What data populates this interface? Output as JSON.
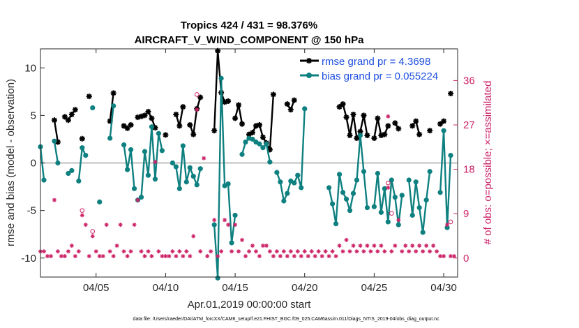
{
  "chart_data": {
    "type": "line",
    "title": "Tropics 424 / 431 = 98.376%",
    "subtitle": "AIRCRAFT_V_WIND_COMPONENT @ 150 hPa",
    "xlabel": "Apr.01,2019 00:00:00 start",
    "ylabel": "rmse and bias (model - observation)",
    "ylabel_right": "# of obs: o=possible; ×=assimilated",
    "footer": "data file: /Users/raeder/DAI/ATM_forcXX/CAM6_setup/f.e21.FHIST_BGC.f09_025.CAM6assim.011/Diags_NTrS_2019-04/obs_diag_output.nc",
    "xlim": [
      1.0,
      31.0
    ],
    "ylim": [
      -12,
      12
    ],
    "ylim_right": [
      -12,
      12
    ],
    "x_ticks": [
      5,
      10,
      15,
      20,
      25,
      30
    ],
    "x_tick_labels": [
      "04/05",
      "04/10",
      "04/15",
      "04/20",
      "04/25",
      "04/30"
    ],
    "y_ticks": [
      -10,
      -5,
      0,
      5,
      10
    ],
    "y_tick_labels": [
      "-10",
      "-5",
      "0",
      "5",
      "10"
    ],
    "y_ticks_right": [
      -10,
      -5.333,
      -0.667,
      4,
      8.667
    ],
    "y_tick_labels_right": [
      "0",
      "9",
      "18",
      "27",
      "36"
    ],
    "legend": [
      {
        "name": "rmse grand pr = 4.3698",
        "color": "#000000"
      },
      {
        "name": "bias grand pr = 0.055224",
        "color": "#0f8080"
      }
    ],
    "zero_line": 0,
    "series": [
      {
        "name": "rmse",
        "color": "#000000",
        "points": [
          [
            2.0,
            4.5
          ],
          [
            2.25,
            2.2
          ],
          null,
          [
            2.75,
            4.85
          ],
          [
            3.0,
            4.5
          ],
          [
            3.25,
            5.1
          ],
          [
            3.5,
            5.6
          ],
          null,
          [
            4.0,
            2.55
          ],
          null,
          [
            4.5,
            7.0
          ],
          null,
          [
            6.0,
            4.4
          ],
          [
            6.25,
            7.35
          ],
          null,
          [
            7.0,
            3.9
          ],
          [
            7.25,
            3.65
          ],
          [
            7.5,
            4.0
          ],
          null,
          [
            8.0,
            4.8
          ],
          [
            8.25,
            4.9
          ],
          [
            8.5,
            5.0
          ],
          [
            8.75,
            5.4
          ],
          [
            9.0,
            4.7
          ],
          [
            9.25,
            3.7
          ],
          null,
          [
            10.0,
            2.95
          ],
          null,
          [
            10.75,
            5.1
          ],
          [
            11.0,
            3.9
          ],
          [
            11.25,
            5.9
          ],
          null,
          [
            11.75,
            4.0
          ],
          [
            12.0,
            3.0
          ],
          [
            12.25,
            5.7
          ],
          [
            12.5,
            6.9
          ],
          null,
          [
            13.5,
            3.4
          ],
          [
            13.75,
            11.8
          ],
          [
            14.0,
            7.4
          ],
          [
            14.25,
            6.4
          ],
          [
            14.5,
            6.5
          ],
          null,
          [
            15.0,
            4.7
          ],
          [
            15.25,
            6.1
          ],
          [
            15.5,
            4.1
          ],
          null,
          [
            16.0,
            3.0
          ],
          [
            16.25,
            3.2
          ],
          [
            16.5,
            3.9
          ],
          [
            16.75,
            4.0
          ],
          [
            17.0,
            2.7
          ],
          [
            17.25,
            2.1
          ],
          [
            17.5,
            1.4
          ],
          [
            17.75,
            7.2
          ],
          null,
          [
            18.75,
            6.2
          ],
          [
            19.0,
            5.6
          ],
          [
            19.25,
            6.6
          ],
          null,
          [
            22.5,
            5.9
          ],
          [
            22.75,
            6.2
          ],
          [
            23.0,
            4.8
          ],
          [
            23.25,
            2.9
          ],
          [
            23.5,
            5.1
          ],
          [
            23.75,
            2.6
          ],
          [
            24.0,
            3.3
          ],
          [
            24.25,
            5.0
          ],
          [
            24.5,
            2.9
          ],
          null,
          [
            25.0,
            2.6
          ],
          [
            25.25,
            4.7
          ],
          [
            25.5,
            2.9
          ],
          [
            25.75,
            3.0
          ],
          [
            26.0,
            3.9
          ],
          null,
          [
            26.5,
            4.2
          ],
          [
            26.75,
            3.6
          ],
          null,
          [
            27.75,
            3.9
          ],
          [
            28.0,
            4.4
          ],
          [
            28.25,
            3.0
          ],
          null,
          [
            29.0,
            3.4
          ],
          null,
          [
            29.75,
            4.1
          ],
          [
            30.0,
            4.4
          ],
          null,
          [
            30.5,
            7.3
          ]
        ]
      },
      {
        "name": "bias",
        "color": "#0f8080",
        "points": [
          [
            1.0,
            1.7
          ],
          [
            1.25,
            -1.8
          ],
          null,
          [
            2.0,
            2.3
          ],
          [
            2.25,
            0.0
          ],
          null,
          [
            3.0,
            -1.1
          ],
          [
            3.25,
            -0.8
          ],
          null,
          [
            3.75,
            -1.9
          ],
          [
            4.0,
            1.6
          ],
          [
            4.25,
            0.8
          ],
          null,
          [
            4.75,
            5.8
          ],
          null,
          [
            5.25,
            -4.1
          ],
          null,
          [
            6.0,
            2.6
          ],
          [
            6.25,
            6.0
          ],
          null,
          [
            7.0,
            1.9
          ],
          [
            7.25,
            -0.7
          ],
          [
            7.5,
            1.4
          ],
          [
            7.75,
            -2.7
          ],
          null,
          [
            8.0,
            -3.9
          ],
          [
            8.25,
            -3.6
          ],
          [
            8.5,
            1.2
          ],
          [
            8.75,
            -1.3
          ],
          [
            9.0,
            3.8
          ],
          [
            9.25,
            -1.7
          ],
          [
            9.5,
            3.1
          ],
          [
            9.75,
            1.3
          ],
          null,
          [
            10.5,
            0.0
          ],
          [
            10.75,
            -0.4
          ],
          [
            11.0,
            -2.7
          ],
          [
            11.25,
            1.8
          ],
          [
            11.5,
            -2.0
          ],
          [
            11.75,
            -0.5
          ],
          [
            12.0,
            -1.4
          ],
          [
            12.25,
            -2.3
          ],
          [
            12.5,
            -0.6
          ],
          null,
          [
            13.5,
            -6.5
          ],
          [
            13.75,
            -12.1
          ],
          [
            14.0,
            8.9
          ],
          [
            14.25,
            -2.4
          ],
          [
            14.5,
            -2.2
          ],
          [
            14.75,
            -8.4
          ],
          [
            15.0,
            -5.5
          ],
          null,
          [
            15.5,
            0.9
          ],
          [
            15.75,
            2.2
          ],
          [
            16.0,
            2.6
          ],
          [
            16.25,
            2.5
          ],
          [
            16.5,
            2.2
          ],
          [
            16.75,
            2.0
          ],
          [
            17.0,
            1.6
          ],
          [
            17.25,
            2.0
          ],
          [
            17.5,
            0.1
          ],
          null,
          [
            18.0,
            -1.0
          ],
          [
            18.25,
            -2.0
          ],
          [
            18.5,
            -4.0
          ],
          [
            18.75,
            -3.2
          ],
          [
            19.0,
            -1.9
          ],
          [
            19.25,
            -2.1
          ],
          [
            19.5,
            -1.3
          ],
          [
            19.75,
            -2.6
          ],
          [
            20.0,
            5.7
          ],
          null,
          [
            21.75,
            -2.6
          ],
          [
            22.0,
            -4.3
          ],
          [
            22.25,
            -6.4
          ],
          [
            22.5,
            -1.2
          ],
          [
            22.75,
            -3.1
          ],
          [
            23.0,
            -3.8
          ],
          [
            23.25,
            -5.0
          ],
          [
            23.5,
            -3.2
          ],
          [
            23.75,
            -1.8
          ],
          [
            24.0,
            2.9
          ],
          [
            24.25,
            -0.9
          ],
          [
            24.5,
            -4.7
          ],
          null,
          [
            25.0,
            -4.6
          ],
          [
            25.25,
            -1.1
          ],
          [
            25.5,
            -5.2
          ],
          [
            25.75,
            -2.7
          ],
          [
            26.0,
            -6.2
          ],
          [
            26.25,
            -1.8
          ],
          [
            26.5,
            -3.6
          ],
          [
            26.75,
            -6.5
          ],
          [
            27.0,
            -3.4
          ],
          null,
          [
            27.5,
            -1.8
          ],
          [
            27.75,
            -5.5
          ],
          [
            28.0,
            -2.0
          ],
          [
            28.25,
            -4.7
          ],
          [
            28.5,
            -7.3
          ],
          [
            28.75,
            -3.9
          ],
          [
            29.0,
            -0.9
          ],
          null,
          [
            29.75,
            -3.1
          ],
          [
            30.0,
            3.4
          ],
          [
            30.25,
            -6.8
          ],
          [
            30.5,
            0.8
          ]
        ]
      },
      {
        "name": "nobs_possible",
        "color": "#cc2266",
        "marker": "open-circle",
        "points": [
          [
            4.0,
            -5.0
          ],
          [
            4.75,
            -7.2
          ],
          [
            12.25,
            7.2
          ],
          [
            26.0,
            -2.1
          ],
          [
            26.25,
            -5.3
          ],
          [
            30.5,
            -6.2
          ]
        ]
      },
      {
        "name": "nobs_assimilated",
        "color": "#cc2266",
        "marker": "asterisk",
        "points": [
          [
            1.0,
            -9.3
          ],
          [
            1.25,
            -9.3
          ],
          [
            1.5,
            -9.8
          ],
          [
            1.75,
            -9.8
          ],
          [
            2.0,
            -3.9
          ],
          [
            2.25,
            -9.3
          ],
          [
            2.5,
            -9.8
          ],
          [
            2.75,
            -9.8
          ],
          [
            3.0,
            -9.3
          ],
          [
            3.25,
            -8.7
          ],
          [
            3.5,
            -9.8
          ],
          [
            3.75,
            -9.3
          ],
          [
            4.0,
            -5.5
          ],
          [
            4.25,
            -6.5
          ],
          [
            4.5,
            -9.8
          ],
          [
            4.75,
            -7.7
          ],
          [
            5.0,
            -9.3
          ],
          [
            5.25,
            -9.8
          ],
          [
            5.5,
            -9.8
          ],
          [
            5.75,
            -6.5
          ],
          [
            6.0,
            -9.3
          ],
          [
            6.25,
            -9.8
          ],
          [
            6.5,
            -8.7
          ],
          [
            6.75,
            -6.5
          ],
          [
            7.0,
            -9.3
          ],
          [
            7.25,
            -9.8
          ],
          [
            7.5,
            -9.3
          ],
          [
            7.75,
            -6.5
          ],
          [
            8.0,
            -3.9
          ],
          [
            8.25,
            -9.3
          ],
          [
            8.5,
            -9.8
          ],
          [
            8.75,
            -9.3
          ],
          [
            9.0,
            -9.8
          ],
          [
            9.25,
            0.1
          ],
          [
            9.5,
            -9.3
          ],
          [
            9.75,
            -9.8
          ],
          [
            10.0,
            -9.8
          ],
          [
            10.25,
            -9.8
          ],
          [
            10.5,
            -9.3
          ],
          [
            10.75,
            -9.8
          ],
          [
            11.0,
            -9.3
          ],
          [
            11.25,
            -9.8
          ],
          [
            11.5,
            -9.3
          ],
          [
            11.75,
            -9.8
          ],
          [
            12.0,
            -7.7
          ],
          [
            12.25,
            5.6
          ],
          [
            12.5,
            -9.3
          ],
          [
            12.75,
            0.5
          ],
          [
            13.0,
            -9.8
          ],
          [
            13.25,
            -9.3
          ],
          [
            13.5,
            -6.0
          ],
          [
            13.75,
            -9.8
          ],
          [
            14.0,
            -9.3
          ],
          [
            14.25,
            -6.0
          ],
          [
            14.5,
            -6.5
          ],
          [
            14.75,
            -9.3
          ],
          [
            15.0,
            -6.5
          ],
          [
            15.25,
            -9.3
          ],
          [
            15.5,
            -8.1
          ],
          [
            15.75,
            -9.8
          ],
          [
            16.0,
            -9.3
          ],
          [
            16.25,
            -8.7
          ],
          [
            16.5,
            -9.3
          ],
          [
            16.75,
            -9.8
          ],
          [
            17.0,
            -8.7
          ],
          [
            17.25,
            -8.7
          ],
          [
            17.5,
            -9.3
          ],
          [
            17.75,
            -9.8
          ],
          [
            18.0,
            -9.3
          ],
          [
            18.25,
            -9.8
          ],
          [
            18.5,
            -9.3
          ],
          [
            18.75,
            -9.8
          ],
          [
            19.0,
            -9.3
          ],
          [
            19.25,
            -9.8
          ],
          [
            19.5,
            -9.3
          ],
          [
            19.75,
            -9.8
          ],
          [
            20.0,
            -9.3
          ],
          [
            20.25,
            -9.8
          ],
          [
            20.5,
            -9.3
          ],
          [
            20.75,
            -9.8
          ],
          [
            21.0,
            -9.3
          ],
          [
            21.25,
            -9.8
          ],
          [
            21.5,
            -9.3
          ],
          [
            21.75,
            -9.8
          ],
          [
            22.0,
            -9.3
          ],
          [
            22.25,
            -9.8
          ],
          [
            22.5,
            -8.7
          ],
          [
            22.75,
            -9.3
          ],
          [
            23.0,
            -8.1
          ],
          [
            23.25,
            -9.3
          ],
          [
            23.5,
            -8.7
          ],
          [
            23.75,
            -9.3
          ],
          [
            24.0,
            -8.7
          ],
          [
            24.25,
            -9.3
          ],
          [
            24.5,
            -8.7
          ],
          [
            24.75,
            -9.3
          ],
          [
            25.0,
            -8.7
          ],
          [
            25.25,
            -9.3
          ],
          [
            25.5,
            -8.7
          ],
          [
            25.75,
            -9.3
          ],
          [
            26.0,
            -2.6
          ],
          [
            26.25,
            -9.3
          ],
          [
            26.5,
            -8.7
          ],
          [
            26.75,
            -6.0
          ],
          [
            27.0,
            -9.3
          ],
          [
            27.25,
            -8.7
          ],
          [
            27.5,
            -9.3
          ],
          [
            27.75,
            -8.7
          ],
          [
            28.0,
            -9.3
          ],
          [
            28.25,
            -8.7
          ],
          [
            28.5,
            -9.3
          ],
          [
            28.75,
            -8.7
          ],
          [
            29.0,
            -9.3
          ],
          [
            29.25,
            -8.7
          ],
          [
            29.5,
            -9.3
          ],
          [
            29.75,
            -9.8
          ],
          [
            30.0,
            -9.8
          ],
          [
            30.25,
            -6.5
          ],
          [
            30.5,
            -9.8
          ],
          [
            30.75,
            -9.8
          ],
          [
            26.0,
            4.9
          ]
        ]
      }
    ]
  }
}
